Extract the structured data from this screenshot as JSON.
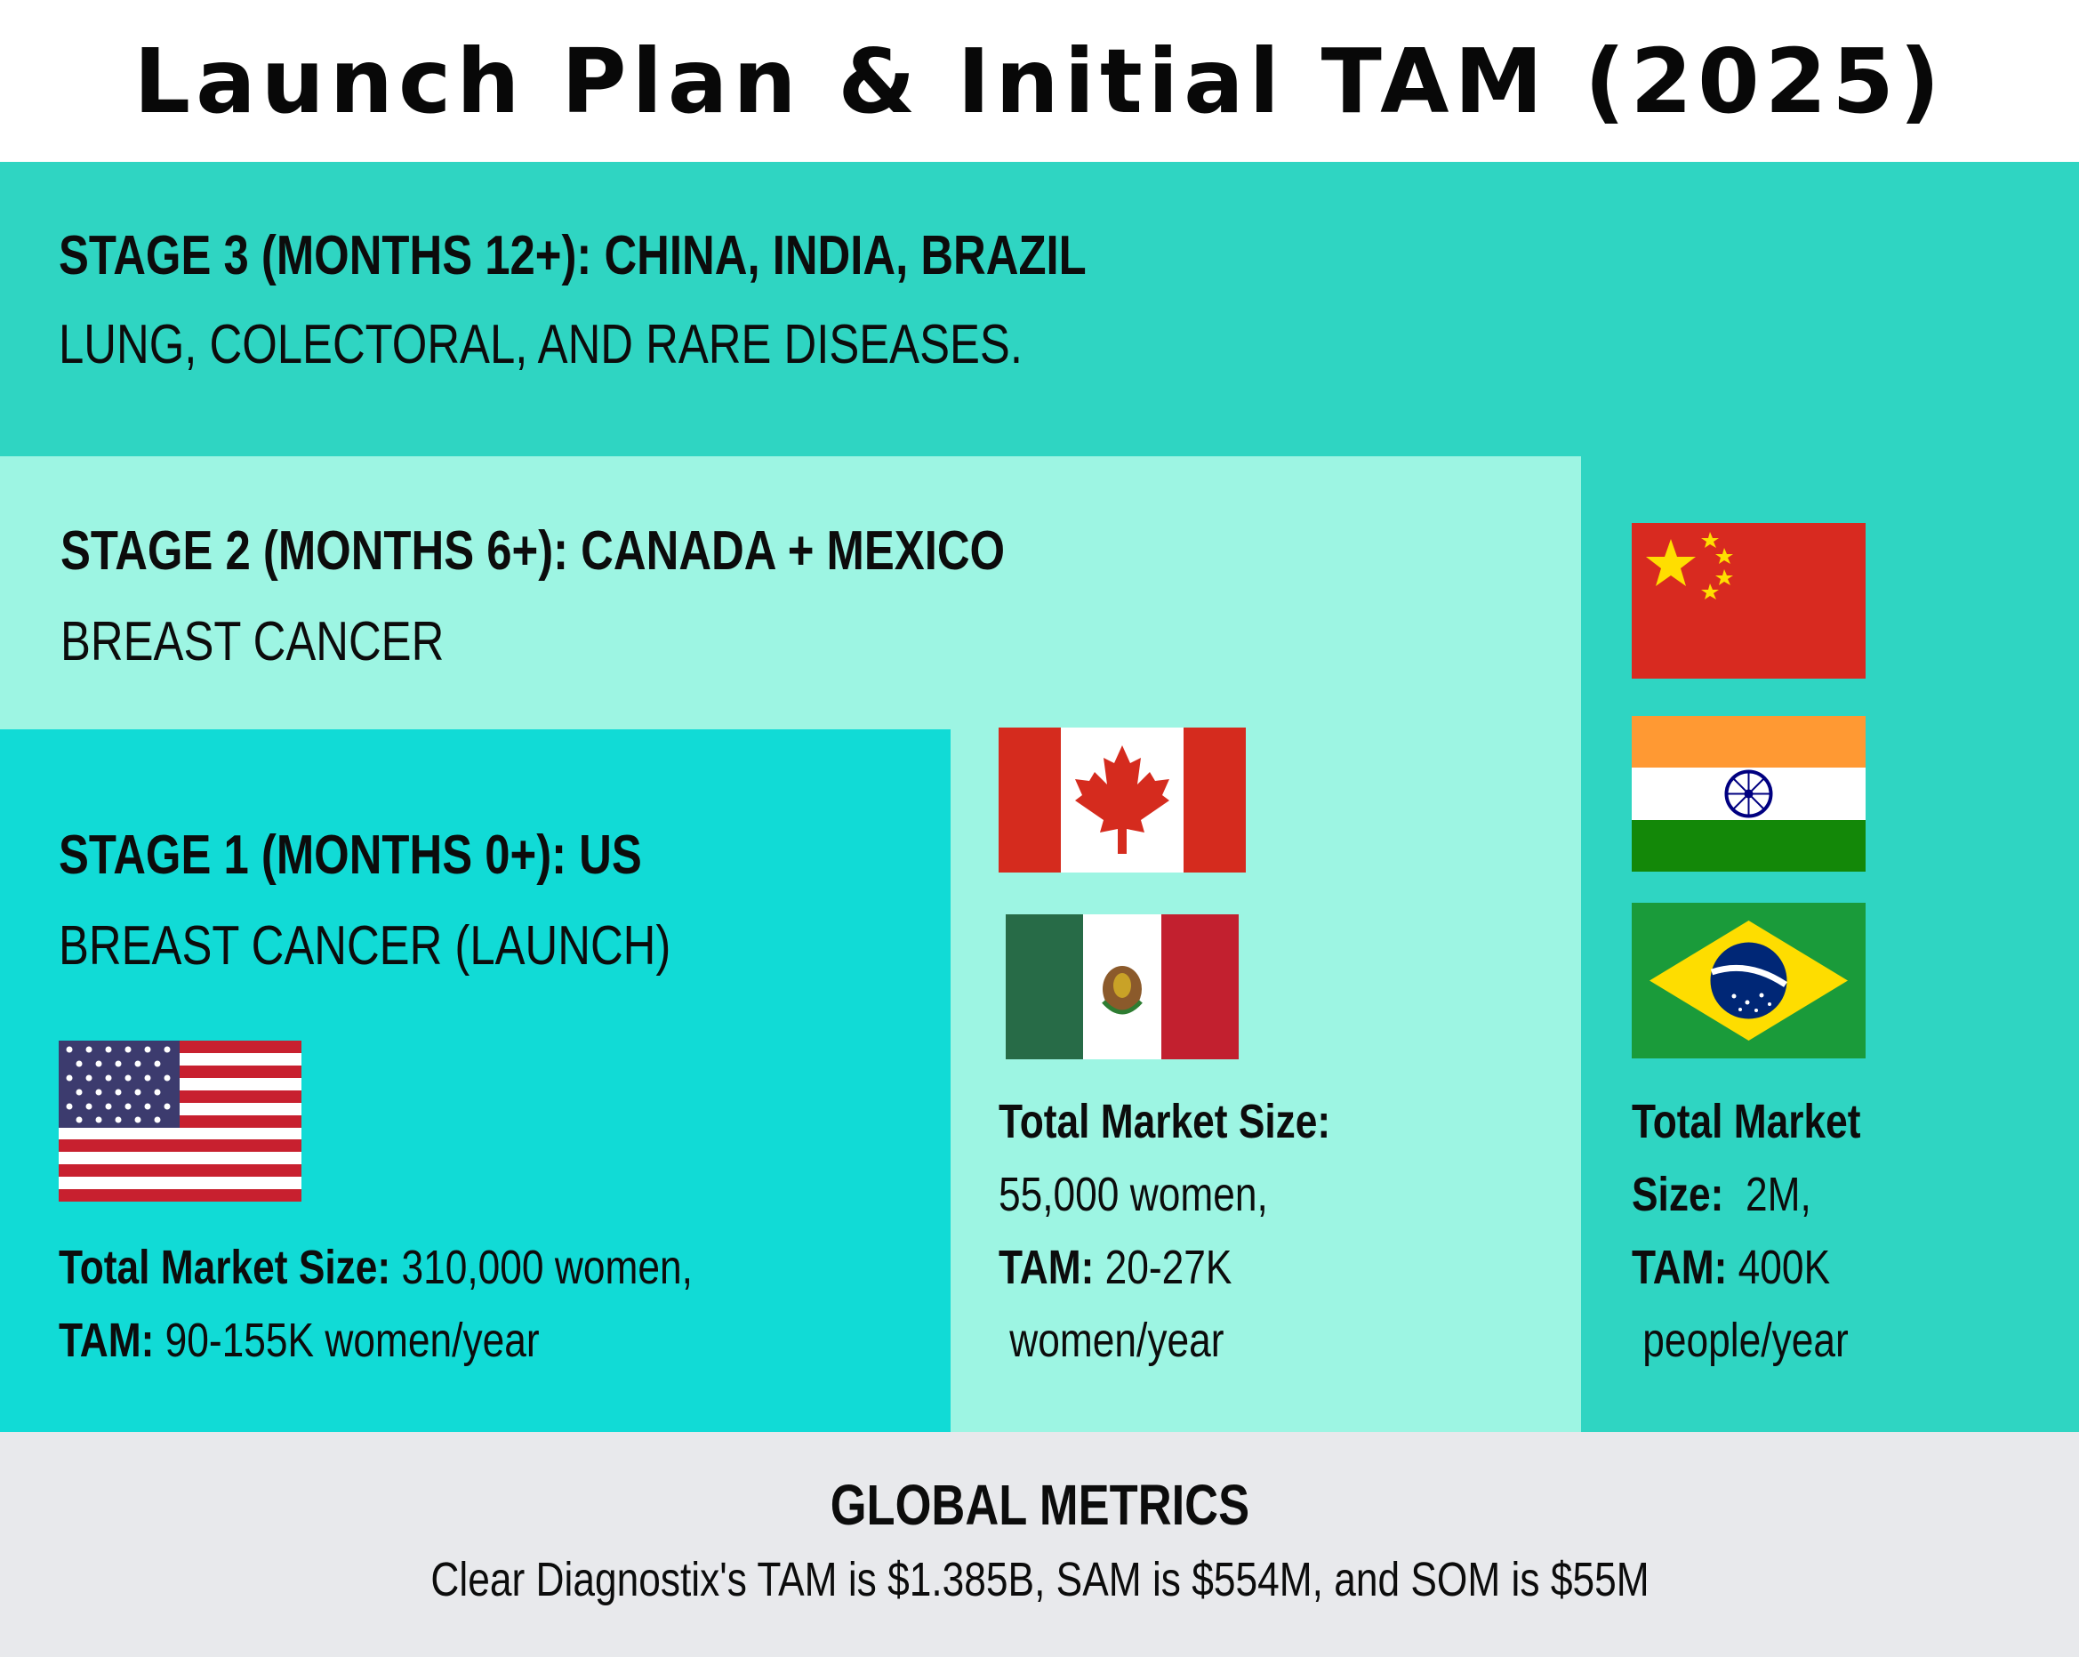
{
  "title": "Launch Plan & Initial TAM (2025)",
  "stage3": {
    "heading": "STAGE 3 (MONTHS 12+): CHINA, INDIA, BRAZIL",
    "subheading": "LUNG, COLECTORAL, AND RARE DISEASES.",
    "market": {
      "line1_label": "Total Market",
      "line2_label": "Size:",
      "line2_value": "  2M,",
      "line3_label": "TAM:",
      "line3_value": " 400K",
      "line4_value": " people/year"
    },
    "flags": [
      "china-flag-icon",
      "india-flag-icon",
      "brazil-flag-icon"
    ]
  },
  "stage2": {
    "heading": "STAGE 2 (MONTHS 6+): CANADA + MEXICO",
    "subheading": "BREAST CANCER",
    "market": {
      "line1_label": "Total Market Size:",
      "line2_value": "55,000 women,",
      "line3_label": "TAM:",
      "line3_value": " 20-27K",
      "line4_value": " women/year"
    },
    "flags": [
      "canada-flag-icon",
      "mexico-flag-icon"
    ]
  },
  "stage1": {
    "heading": "STAGE 1 (MONTHS 0+): US",
    "subheading": "BREAST CANCER (LAUNCH)",
    "market": {
      "line1_label": "Total Market Size:",
      "line1_value": " 310,000 women,",
      "line2_label": "TAM:",
      "line2_value": " 90-155K women/year"
    },
    "flags": [
      "us-flag-icon"
    ]
  },
  "global_metrics": {
    "title": "GLOBAL METRICS",
    "text": "Clear Diagnostix's TAM is $1.385B, SAM is $554M, and SOM is $55M"
  },
  "colors": {
    "stage3_bg": "#2fd5c2",
    "stage2_bg": "#9df5e3",
    "stage1_bg": "#11dbd6",
    "metrics_bg": "#e8e9ec"
  }
}
